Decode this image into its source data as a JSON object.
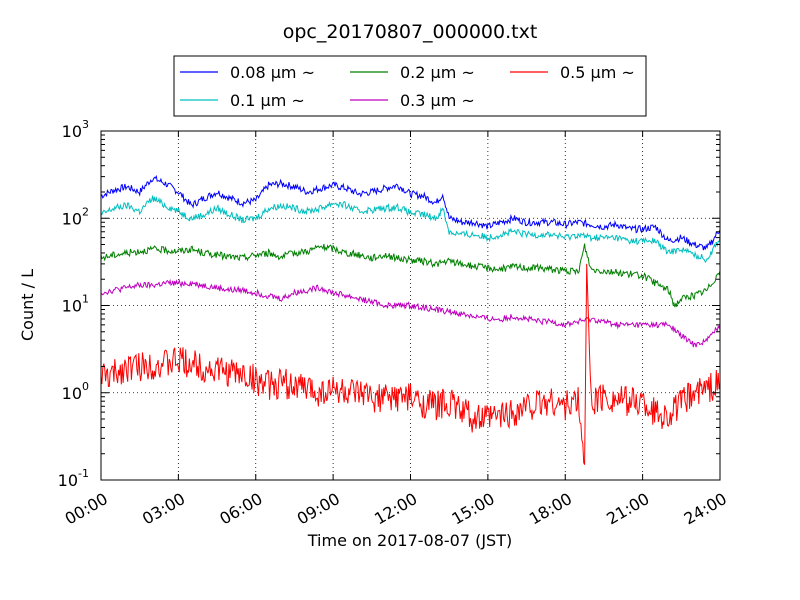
{
  "chart_data": {
    "type": "line",
    "title": "opc_20170807_000000.txt",
    "xlabel": "Time on 2017-08-07 (JST)",
    "ylabel": "Count / L",
    "yscale": "log",
    "ylim": [
      0.1,
      1000
    ],
    "xlim": [
      "00:00",
      "24:00"
    ],
    "grid": true,
    "legend_position": "top",
    "x_ticks": [
      "00:00",
      "03:00",
      "06:00",
      "09:00",
      "12:00",
      "15:00",
      "18:00",
      "21:00",
      "24:00"
    ],
    "y_ticks": [
      {
        "base": "10",
        "exp": "-1",
        "value": 0.1
      },
      {
        "base": "10",
        "exp": "0",
        "value": 1
      },
      {
        "base": "10",
        "exp": "1",
        "value": 10
      },
      {
        "base": "10",
        "exp": "2",
        "value": 100
      },
      {
        "base": "10",
        "exp": "3",
        "value": 1000
      }
    ],
    "series": [
      {
        "name": "0.08 μm ~",
        "color": "#0000ff",
        "x": [
          "00:00",
          "00:30",
          "01:00",
          "01:30",
          "02:00",
          "02:30",
          "03:00",
          "03:30",
          "04:00",
          "04:30",
          "05:00",
          "05:30",
          "06:00",
          "06:30",
          "07:00",
          "07:30",
          "08:00",
          "08:30",
          "09:00",
          "09:30",
          "10:00",
          "10:30",
          "11:00",
          "11:30",
          "12:00",
          "12:30",
          "13:00",
          "13:15",
          "13:30",
          "14:00",
          "14:30",
          "15:00",
          "15:30",
          "16:00",
          "16:30",
          "17:00",
          "17:30",
          "18:00",
          "18:30",
          "19:00",
          "19:30",
          "20:00",
          "20:30",
          "21:00",
          "21:30",
          "22:00",
          "22:30",
          "23:00",
          "23:30",
          "24:00"
        ],
        "y": [
          180,
          210,
          230,
          200,
          290,
          250,
          200,
          140,
          170,
          200,
          170,
          150,
          160,
          240,
          250,
          230,
          200,
          220,
          240,
          220,
          190,
          200,
          220,
          240,
          190,
          180,
          150,
          190,
          100,
          90,
          90,
          80,
          90,
          100,
          90,
          90,
          90,
          85,
          90,
          85,
          80,
          85,
          75,
          75,
          80,
          55,
          60,
          50,
          45,
          75
        ]
      },
      {
        "name": "0.1 μm ~",
        "color": "#00bfbf",
        "x": [
          "00:00",
          "00:30",
          "01:00",
          "01:30",
          "02:00",
          "02:30",
          "03:00",
          "03:30",
          "04:00",
          "04:30",
          "05:00",
          "05:30",
          "06:00",
          "06:30",
          "07:00",
          "07:30",
          "08:00",
          "08:30",
          "09:00",
          "09:30",
          "10:00",
          "10:30",
          "11:00",
          "11:30",
          "12:00",
          "12:30",
          "13:00",
          "13:15",
          "13:30",
          "14:00",
          "14:30",
          "15:00",
          "15:30",
          "16:00",
          "16:30",
          "17:00",
          "17:30",
          "18:00",
          "18:30",
          "19:00",
          "19:30",
          "20:00",
          "20:30",
          "21:00",
          "21:30",
          "22:00",
          "22:30",
          "23:00",
          "23:30",
          "24:00"
        ],
        "y": [
          110,
          130,
          140,
          120,
          170,
          140,
          120,
          100,
          110,
          130,
          110,
          95,
          100,
          130,
          140,
          130,
          120,
          130,
          150,
          140,
          120,
          125,
          130,
          135,
          115,
          110,
          100,
          130,
          70,
          65,
          65,
          60,
          65,
          70,
          65,
          65,
          65,
          60,
          65,
          60,
          60,
          60,
          55,
          55,
          55,
          40,
          45,
          38,
          34,
          60
        ]
      },
      {
        "name": "0.2 μm ~",
        "color": "#008000",
        "x": [
          "00:00",
          "00:30",
          "01:00",
          "01:30",
          "02:00",
          "02:30",
          "03:00",
          "03:30",
          "04:00",
          "04:30",
          "05:00",
          "05:30",
          "06:00",
          "06:30",
          "07:00",
          "07:30",
          "08:00",
          "08:30",
          "09:00",
          "09:30",
          "10:00",
          "10:30",
          "11:00",
          "11:30",
          "12:00",
          "12:30",
          "13:00",
          "13:30",
          "14:00",
          "14:30",
          "15:00",
          "15:30",
          "16:00",
          "16:30",
          "17:00",
          "17:30",
          "18:00",
          "18:30",
          "18:45",
          "19:00",
          "19:30",
          "20:00",
          "20:30",
          "21:00",
          "21:30",
          "22:00",
          "22:15",
          "22:30",
          "23:00",
          "23:30",
          "24:00"
        ],
        "y": [
          35,
          38,
          40,
          42,
          44,
          43,
          42,
          44,
          40,
          38,
          36,
          35,
          38,
          40,
          36,
          40,
          42,
          47,
          45,
          40,
          38,
          35,
          38,
          35,
          33,
          32,
          30,
          32,
          30,
          28,
          27,
          26,
          28,
          27,
          27,
          26,
          25,
          24,
          48,
          26,
          25,
          24,
          23,
          22,
          18,
          15,
          10,
          12,
          13,
          15,
          25
        ]
      },
      {
        "name": "0.3 μm ~",
        "color": "#bf00bf",
        "x": [
          "00:00",
          "00:30",
          "01:00",
          "01:30",
          "02:00",
          "02:30",
          "03:00",
          "03:30",
          "04:00",
          "04:30",
          "05:00",
          "05:30",
          "06:00",
          "06:30",
          "07:00",
          "07:30",
          "08:00",
          "08:30",
          "09:00",
          "09:30",
          "10:00",
          "10:30",
          "11:00",
          "11:30",
          "12:00",
          "12:30",
          "13:00",
          "13:30",
          "14:00",
          "14:30",
          "15:00",
          "15:30",
          "16:00",
          "16:30",
          "17:00",
          "17:30",
          "18:00",
          "18:30",
          "19:00",
          "19:30",
          "20:00",
          "20:30",
          "21:00",
          "21:30",
          "22:00",
          "22:30",
          "23:00",
          "23:30",
          "24:00"
        ],
        "y": [
          14,
          15,
          16,
          17,
          17,
          18,
          18,
          18,
          17,
          16,
          15,
          15,
          14,
          13,
          12,
          14,
          15,
          16,
          14,
          13,
          12,
          11,
          10,
          10,
          10,
          9.5,
          9,
          8.5,
          8,
          7.5,
          7,
          7,
          7.5,
          7,
          6.5,
          6.5,
          6,
          6.5,
          7,
          6.5,
          6,
          6,
          6,
          6,
          6,
          4.5,
          3.5,
          4,
          6
        ]
      },
      {
        "name": "0.5 μm ~",
        "color": "#ff0000",
        "x": [
          "00:00",
          "00:15",
          "00:30",
          "01:00",
          "01:30",
          "02:00",
          "02:30",
          "03:00",
          "03:30",
          "04:00",
          "04:30",
          "05:00",
          "05:30",
          "06:00",
          "06:30",
          "07:00",
          "07:30",
          "08:00",
          "08:30",
          "09:00",
          "09:30",
          "10:00",
          "10:30",
          "11:00",
          "11:30",
          "12:00",
          "12:30",
          "13:00",
          "13:30",
          "14:00",
          "14:30",
          "15:00",
          "15:30",
          "16:00",
          "16:30",
          "17:00",
          "17:30",
          "18:00",
          "18:30",
          "18:45",
          "18:50",
          "19:00",
          "19:30",
          "20:00",
          "20:30",
          "21:00",
          "21:30",
          "22:00",
          "22:30",
          "23:00",
          "23:30",
          "24:00"
        ],
        "y": [
          1.6,
          1.5,
          1.6,
          2.0,
          2.0,
          2.1,
          2.1,
          2.3,
          2.2,
          1.9,
          1.8,
          1.7,
          1.6,
          1.4,
          1.2,
          1.3,
          1.2,
          1.1,
          1.0,
          1.1,
          1.0,
          0.9,
          0.9,
          0.85,
          0.9,
          0.85,
          0.75,
          0.7,
          0.8,
          0.6,
          0.5,
          0.5,
          0.55,
          0.6,
          0.7,
          0.75,
          0.8,
          0.7,
          0.8,
          0.15,
          30,
          0.8,
          0.9,
          0.85,
          0.8,
          0.8,
          0.6,
          0.55,
          0.75,
          1.0,
          1.1,
          1.3
        ]
      }
    ]
  }
}
